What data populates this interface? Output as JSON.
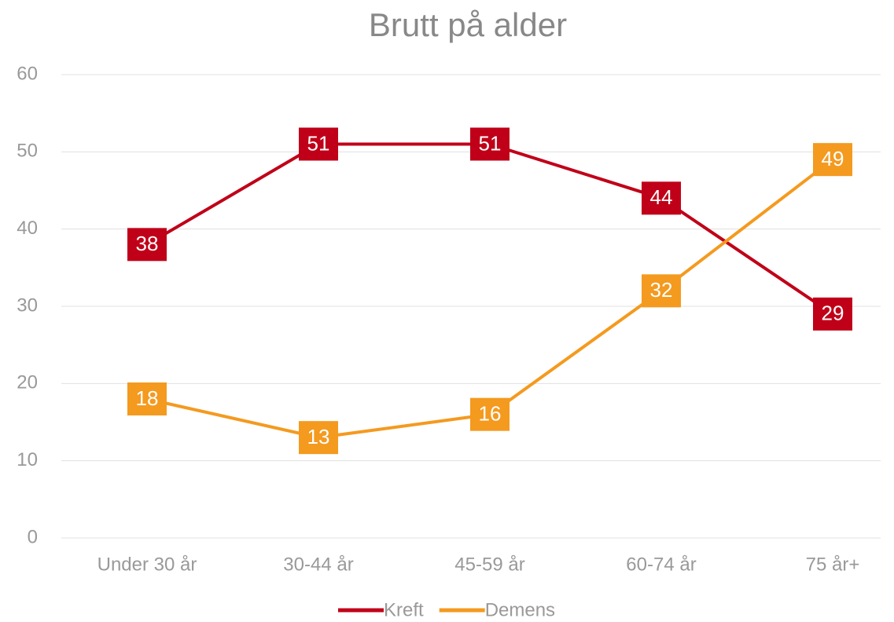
{
  "chart_data": {
    "type": "line",
    "title": "Brutt på alder",
    "categories": [
      "Under 30 år",
      "30-44 år",
      "45-59 år",
      "60-74 år",
      "75 år+"
    ],
    "series": [
      {
        "name": "Kreft",
        "color": "#c00018",
        "values": [
          38,
          51,
          51,
          44,
          29
        ]
      },
      {
        "name": "Demens",
        "color": "#f49a1f",
        "values": [
          18,
          13,
          16,
          32,
          49
        ]
      }
    ],
    "ylim": [
      0,
      60
    ],
    "yticks": [
      0,
      10,
      20,
      30,
      40,
      50,
      60
    ],
    "grid": true,
    "legend": "bottom"
  }
}
